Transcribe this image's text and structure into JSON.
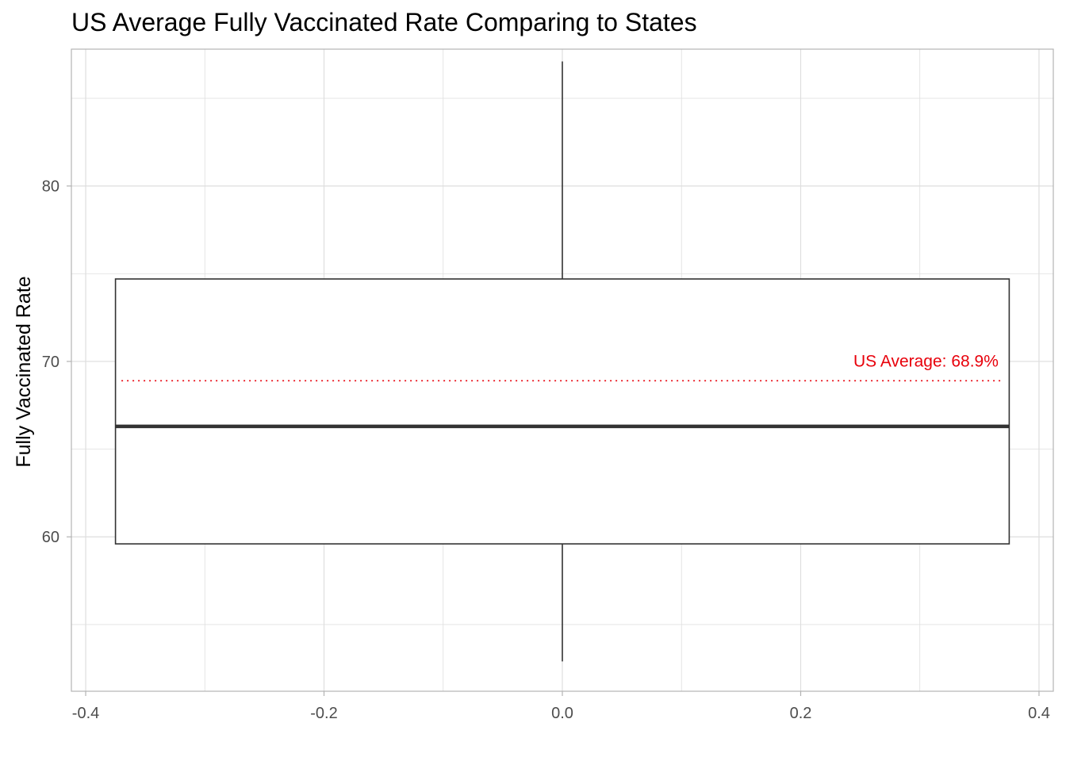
{
  "chart_data": {
    "type": "boxplot",
    "title": "US Average Fully Vaccinated Rate Comparing to States",
    "xlabel": "",
    "ylabel": "Fully Vaccinated Rate",
    "xlim": [
      -0.412,
      0.412
    ],
    "ylim": [
      51.2,
      87.8
    ],
    "x_ticks": [
      {
        "value": -0.4,
        "label": "-0.4"
      },
      {
        "value": -0.2,
        "label": "-0.2"
      },
      {
        "value": 0.0,
        "label": "0.0"
      },
      {
        "value": 0.2,
        "label": "0.2"
      },
      {
        "value": 0.4,
        "label": "0.4"
      }
    ],
    "x_minor_ticks": [
      -0.3,
      -0.1,
      0.1,
      0.3
    ],
    "y_ticks": [
      {
        "value": 60,
        "label": "60"
      },
      {
        "value": 70,
        "label": "70"
      },
      {
        "value": 80,
        "label": "80"
      }
    ],
    "y_minor_ticks": [
      55,
      65,
      75,
      85
    ],
    "grid": true,
    "box": {
      "x_center": 0.0,
      "x_min": -0.375,
      "x_max": 0.375,
      "whisker_low": 52.9,
      "q1": 59.6,
      "median": 66.3,
      "q3": 74.7,
      "whisker_high": 87.1
    },
    "reference_line": {
      "y": 68.9,
      "x_from": -0.37,
      "x_to": 0.37,
      "label": "US Average: 68.9%",
      "color": "#e8000b",
      "style": "dotted"
    },
    "colors": {
      "grid": "#dedede",
      "panel_border": "#b3b3b3",
      "box_stroke": "#333333",
      "axis_text": "#4d4d4d"
    }
  }
}
